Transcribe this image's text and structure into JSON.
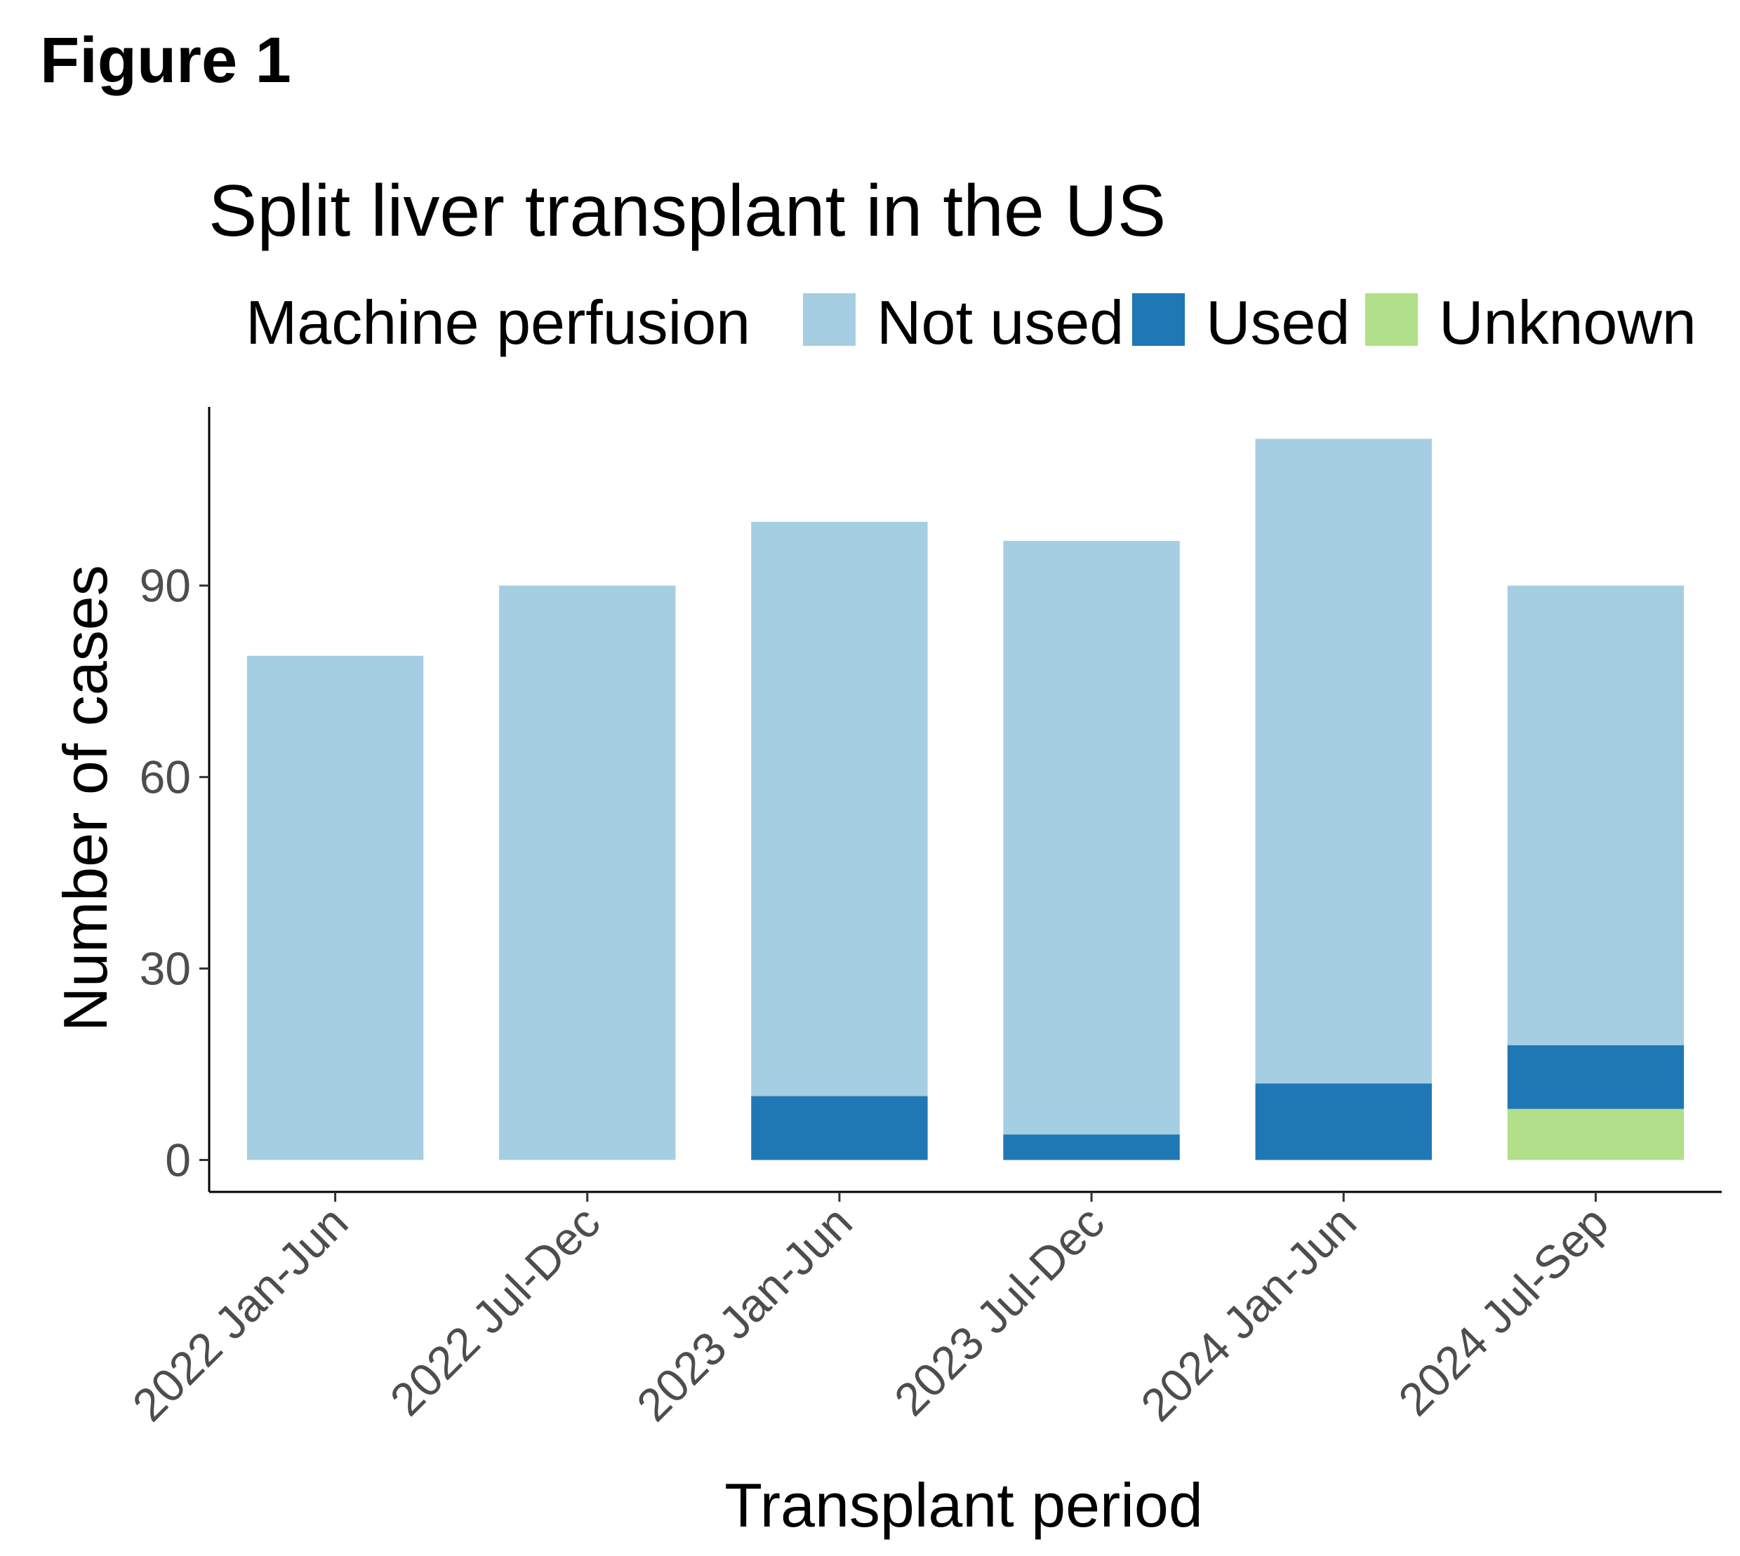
{
  "figure_label": "Figure 1",
  "chart_data": {
    "type": "bar",
    "stacked": true,
    "title": "Split liver transplant in the US",
    "xlabel": "Transplant period",
    "ylabel": "Number of cases",
    "legend_title": "Machine perfusion",
    "legend_position": "top",
    "grid": false,
    "ylim": [
      -5,
      118
    ],
    "yticks": [
      0,
      30,
      60,
      90
    ],
    "categories": [
      "2022 Jan-Jun",
      "2022 Jul-Dec",
      "2023 Jan-Jun",
      "2023 Jul-Dec",
      "2024 Jan-Jun",
      "2024 Jul-Sep"
    ],
    "stack_order": [
      "Unknown",
      "Used",
      "Not used"
    ],
    "series": [
      {
        "name": "Not used",
        "color": "#a6cee3",
        "values": [
          79,
          90,
          90,
          93,
          101,
          72
        ]
      },
      {
        "name": "Used",
        "color": "#1f78b4",
        "values": [
          0,
          0,
          10,
          4,
          12,
          10
        ]
      },
      {
        "name": "Unknown",
        "color": "#b2df8a",
        "values": [
          0,
          0,
          0,
          0,
          0,
          8
        ]
      }
    ]
  }
}
